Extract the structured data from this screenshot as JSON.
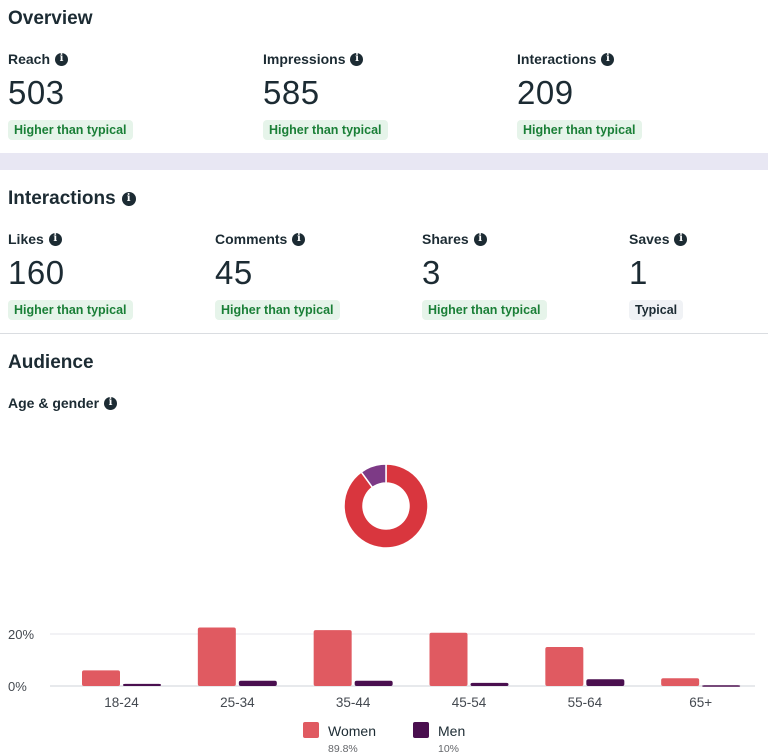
{
  "overview": {
    "title": "Overview",
    "metrics": [
      {
        "label": "Reach",
        "value": "503",
        "status": "Higher than typical"
      },
      {
        "label": "Impressions",
        "value": "585",
        "status": "Higher than typical"
      },
      {
        "label": "Interactions",
        "value": "209",
        "status": "Higher than typical"
      }
    ]
  },
  "interactions": {
    "title": "Interactions",
    "metrics": [
      {
        "label": "Likes",
        "value": "160",
        "status": "Higher than typical"
      },
      {
        "label": "Comments",
        "value": "45",
        "status": "Higher than typical"
      },
      {
        "label": "Shares",
        "value": "3",
        "status": "Higher than typical"
      },
      {
        "label": "Saves",
        "value": "1",
        "status": "Typical"
      }
    ]
  },
  "audience": {
    "title": "Audience",
    "subtitle": "Age & gender"
  },
  "colors": {
    "women": "#e05a61",
    "donut_women": "#d9363e",
    "men": "#4a0f4f",
    "donut_men": "#7d3a86",
    "badge_good_text": "#1a7f37",
    "badge_good_bg": "#e6f4ea"
  },
  "chart_data": [
    {
      "type": "pie",
      "style": "donut",
      "labels": [
        "Women",
        "Men"
      ],
      "values": [
        89.8,
        10
      ]
    },
    {
      "type": "bar",
      "categories": [
        "18-24",
        "25-34",
        "35-44",
        "45-54",
        "55-64",
        "65+"
      ],
      "series": [
        {
          "name": "Women",
          "values": [
            6,
            22.5,
            21.5,
            20.5,
            15,
            3
          ]
        },
        {
          "name": "Men",
          "values": [
            0.8,
            2,
            2,
            1.2,
            2.6,
            0.3
          ]
        }
      ],
      "yticks": [
        "0%",
        "20%"
      ],
      "ylim": [
        0,
        22
      ],
      "grid": true,
      "legend_position": "bottom",
      "legend": [
        {
          "name": "Women",
          "value": "89.8%"
        },
        {
          "name": "Men",
          "value": "10%"
        }
      ]
    }
  ]
}
